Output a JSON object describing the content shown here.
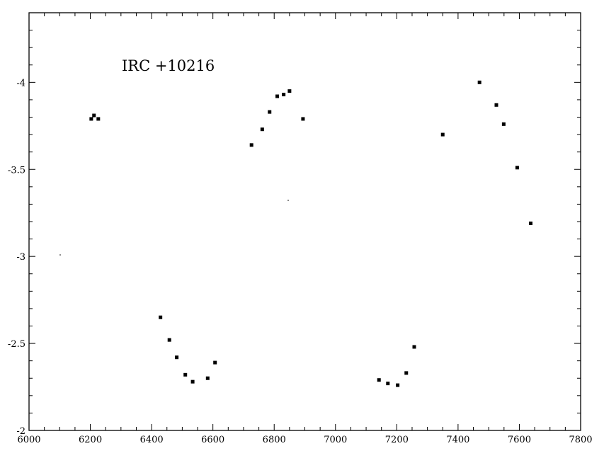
{
  "chart_data": {
    "type": "scatter",
    "title": "",
    "annotation": "IRC  +10216",
    "xlabel": "",
    "ylabel": "",
    "xlim": [
      6000,
      7800
    ],
    "ylim": [
      -2,
      -4.4
    ],
    "y_axis_inverted": true,
    "grid": false,
    "x_ticks": [
      6000,
      6200,
      6400,
      6600,
      6800,
      7000,
      7200,
      7400,
      7600,
      7800
    ],
    "x_tick_labels": [
      "6000",
      "6200",
      "6400",
      "6600",
      "6800",
      "7000",
      "7200",
      "7400",
      "7600",
      "7800"
    ],
    "y_ticks": [
      -2,
      -2.5,
      -3,
      -3.5,
      -4
    ],
    "y_tick_labels": [
      "-2",
      "-2.5",
      "-3",
      "-3.5",
      "-4"
    ],
    "marker_color": "#000000",
    "series": [
      {
        "points": [
          {
            "x": 6203,
            "y": -3.79
          },
          {
            "x": 6212,
            "y": -3.81
          },
          {
            "x": 6226,
            "y": -3.79
          },
          {
            "x": 6429,
            "y": -2.65
          },
          {
            "x": 6458,
            "y": -2.52
          },
          {
            "x": 6482,
            "y": -2.42
          },
          {
            "x": 6510,
            "y": -2.32
          },
          {
            "x": 6534,
            "y": -2.28
          },
          {
            "x": 6583,
            "y": -2.3
          },
          {
            "x": 6607,
            "y": -2.39
          },
          {
            "x": 6726,
            "y": -3.64
          },
          {
            "x": 6761,
            "y": -3.73
          },
          {
            "x": 6785,
            "y": -3.83
          },
          {
            "x": 6810,
            "y": -3.92
          },
          {
            "x": 6831,
            "y": -3.93
          },
          {
            "x": 6850,
            "y": -3.95
          },
          {
            "x": 6894,
            "y": -3.79
          },
          {
            "x": 7142,
            "y": -2.29
          },
          {
            "x": 7171,
            "y": -2.27
          },
          {
            "x": 7203,
            "y": -2.26
          },
          {
            "x": 7231,
            "y": -2.33
          },
          {
            "x": 7257,
            "y": -2.48
          },
          {
            "x": 7350,
            "y": -3.7
          },
          {
            "x": 7470,
            "y": -4.0
          },
          {
            "x": 7525,
            "y": -3.87
          },
          {
            "x": 7549,
            "y": -3.76
          },
          {
            "x": 7593,
            "y": -3.51
          },
          {
            "x": 7637,
            "y": -3.19
          }
        ]
      }
    ]
  }
}
